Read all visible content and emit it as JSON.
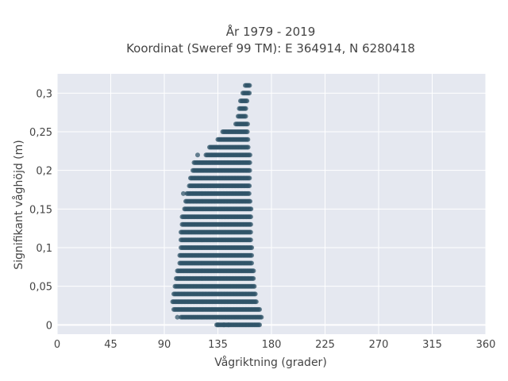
{
  "chart_data": {
    "type": "scatter",
    "title": [
      "År 1979 - 2019",
      "Koordinat (Sweref 99 TM): E 364914, N 6280418"
    ],
    "xlabel": "Vågriktning (grader)",
    "ylabel": "Signifikant våghöjd (m)",
    "xlim": [
      0,
      360
    ],
    "ylim": [
      -0.012,
      0.325
    ],
    "x_ticks": [
      0,
      45,
      90,
      135,
      180,
      225,
      270,
      315,
      360
    ],
    "x_tick_labels": [
      "0",
      "45",
      "90",
      "135",
      "180",
      "225",
      "270",
      "315",
      "360"
    ],
    "y_ticks": [
      0,
      0.05,
      0.1,
      0.15,
      0.2,
      0.25,
      0.3
    ],
    "y_tick_labels": [
      "0",
      "0,05",
      "0,1",
      "0,15",
      "0,2",
      "0,25",
      "0,3"
    ],
    "grid": true,
    "marker_color": "#2f5368",
    "plot_bg": "#e5e8f0",
    "grid_color": "#ffffff",
    "bands": [
      {
        "y": 0.0,
        "xmin": 134,
        "xmax": 170
      },
      {
        "y": 0.01,
        "xmin": 104,
        "xmax": 172
      },
      {
        "y": 0.02,
        "xmin": 98,
        "xmax": 170
      },
      {
        "y": 0.03,
        "xmin": 97,
        "xmax": 168
      },
      {
        "y": 0.04,
        "xmin": 98,
        "xmax": 167
      },
      {
        "y": 0.05,
        "xmin": 99,
        "xmax": 166
      },
      {
        "y": 0.06,
        "xmin": 100,
        "xmax": 165
      },
      {
        "y": 0.07,
        "xmin": 101,
        "xmax": 165
      },
      {
        "y": 0.08,
        "xmin": 103,
        "xmax": 164
      },
      {
        "y": 0.09,
        "xmin": 103,
        "xmax": 164
      },
      {
        "y": 0.1,
        "xmin": 104,
        "xmax": 164
      },
      {
        "y": 0.11,
        "xmin": 104,
        "xmax": 163
      },
      {
        "y": 0.12,
        "xmin": 104,
        "xmax": 163
      },
      {
        "y": 0.13,
        "xmin": 105,
        "xmax": 163
      },
      {
        "y": 0.14,
        "xmin": 105,
        "xmax": 163
      },
      {
        "y": 0.15,
        "xmin": 107,
        "xmax": 163
      },
      {
        "y": 0.16,
        "xmin": 108,
        "xmax": 162
      },
      {
        "y": 0.17,
        "xmin": 109,
        "xmax": 162
      },
      {
        "y": 0.18,
        "xmin": 111,
        "xmax": 162
      },
      {
        "y": 0.19,
        "xmin": 112,
        "xmax": 162
      },
      {
        "y": 0.2,
        "xmin": 114,
        "xmax": 162
      },
      {
        "y": 0.21,
        "xmin": 115,
        "xmax": 162
      },
      {
        "y": 0.22,
        "xmin": 125,
        "xmax": 162
      },
      {
        "y": 0.23,
        "xmin": 128,
        "xmax": 161
      },
      {
        "y": 0.24,
        "xmin": 135,
        "xmax": 161
      },
      {
        "y": 0.25,
        "xmin": 139,
        "xmax": 160
      },
      {
        "y": 0.26,
        "xmin": 150,
        "xmax": 160
      },
      {
        "y": 0.27,
        "xmin": 152,
        "xmax": 159
      },
      {
        "y": 0.28,
        "xmin": 153,
        "xmax": 159
      },
      {
        "y": 0.29,
        "xmin": 154,
        "xmax": 160
      },
      {
        "y": 0.3,
        "xmin": 156,
        "xmax": 162
      },
      {
        "y": 0.31,
        "xmin": 158,
        "xmax": 162
      }
    ],
    "outliers": [
      {
        "x": 101,
        "y": 0.01
      },
      {
        "x": 106,
        "y": 0.17
      },
      {
        "x": 118,
        "y": 0.22
      },
      {
        "x": 135,
        "y": 0.0
      },
      {
        "x": 140,
        "y": 0.0
      },
      {
        "x": 144,
        "y": 0.0
      }
    ]
  }
}
